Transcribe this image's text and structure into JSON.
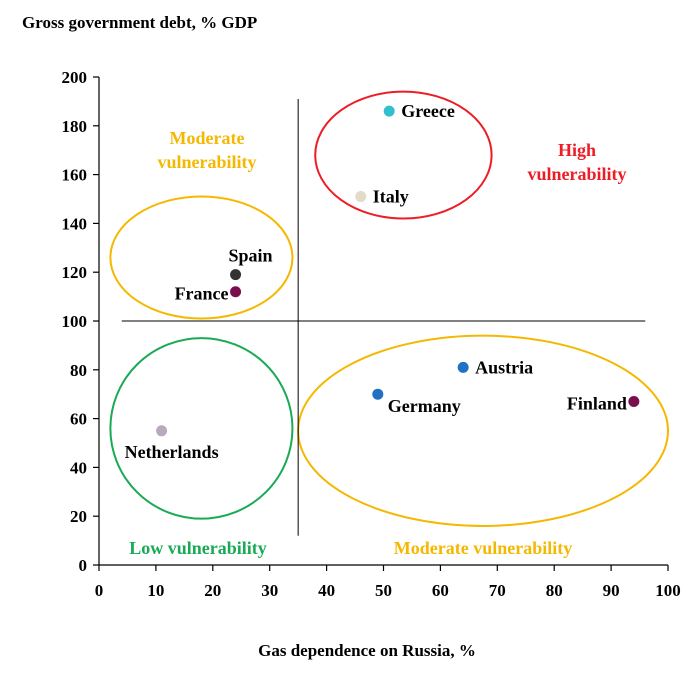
{
  "chart_data": {
    "type": "scatter",
    "title": "Gross government debt, % GDP",
    "xlabel": "Gas dependence on Russia, %",
    "ylabel": "",
    "xlim": [
      0,
      100
    ],
    "ylim": [
      0,
      200
    ],
    "xticks": [
      0,
      10,
      20,
      30,
      40,
      50,
      60,
      70,
      80,
      90,
      100
    ],
    "yticks": [
      0,
      20,
      40,
      60,
      80,
      100,
      120,
      140,
      160,
      180,
      200
    ],
    "grid": false,
    "points": [
      {
        "label": "Greece",
        "x": 51,
        "y": 186,
        "color": "#33bfd0",
        "label_pos": "right"
      },
      {
        "label": "Italy",
        "x": 46,
        "y": 151,
        "color": "#e3dac8",
        "label_pos": "right"
      },
      {
        "label": "Spain",
        "x": 24,
        "y": 119,
        "color": "#333333",
        "label_pos": "above"
      },
      {
        "label": "France",
        "x": 24,
        "y": 112,
        "color": "#7a0d4e",
        "label_pos": "left"
      },
      {
        "label": "Austria",
        "x": 64,
        "y": 81,
        "color": "#2070c4",
        "label_pos": "right"
      },
      {
        "label": "Germany",
        "x": 49,
        "y": 70,
        "color": "#2070c4",
        "label_pos": "below-right"
      },
      {
        "label": "Finland",
        "x": 94,
        "y": 67,
        "color": "#7a0d4e",
        "label_pos": "left"
      },
      {
        "label": "Netherlands",
        "x": 11,
        "y": 55,
        "color": "#b9a9bf",
        "label_pos": "below-right"
      }
    ],
    "divider_lines": [
      {
        "orientation": "vertical",
        "x": 35,
        "y_range": [
          12,
          191
        ]
      },
      {
        "orientation": "horizontal",
        "y": 100,
        "x_range": [
          4,
          96
        ]
      }
    ],
    "regions": [
      {
        "label": "Moderate vulnerability",
        "lines": [
          "Moderate",
          "vulnerability"
        ],
        "color": "#f5b800",
        "cx": 18,
        "cy": 126,
        "rx": 16,
        "ry": 25
      },
      {
        "label": "High vulnerability",
        "lines": [
          "High",
          "vulnerability"
        ],
        "color": "#ee1c25",
        "cx": 53.5,
        "cy": 168,
        "rx": 15.5,
        "ry": 26
      },
      {
        "label": "Low vulnerability",
        "lines": [
          "Low vulnerability"
        ],
        "color": "#1aaa55",
        "cx": 18,
        "cy": 56,
        "rx": 16,
        "ry": 37
      },
      {
        "label": "Moderate vulnerability",
        "lines": [
          "Moderate vulnerability"
        ],
        "color": "#f5b800",
        "cx": 67.5,
        "cy": 55,
        "rx": 32.5,
        "ry": 39
      }
    ]
  }
}
